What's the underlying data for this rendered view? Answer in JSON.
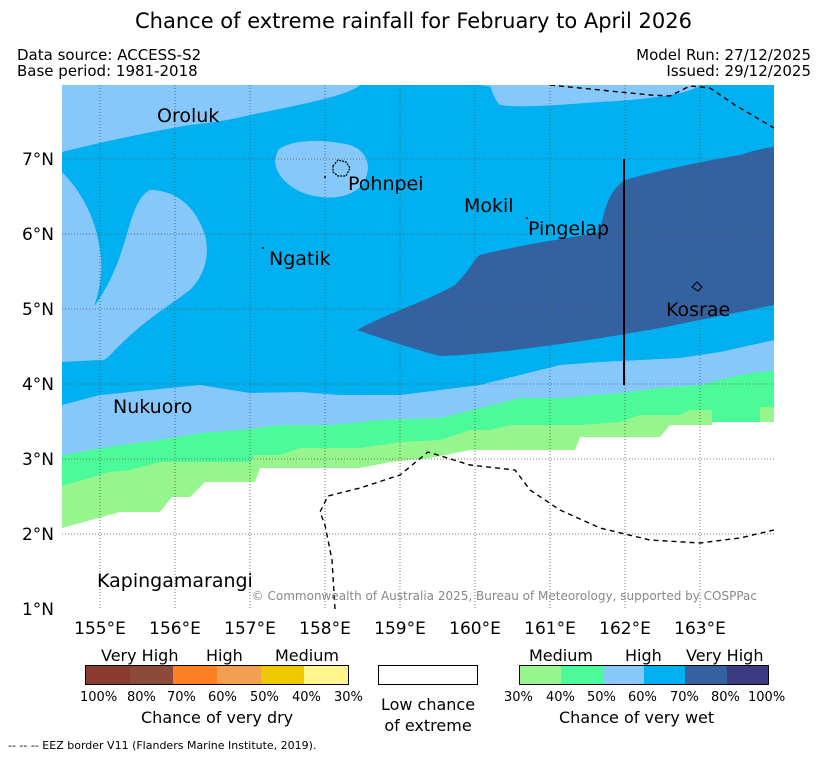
{
  "title": "Chance of extreme rainfall for February to April 2026",
  "meta": {
    "data_source": "Data source: ACCESS-S2",
    "base_period": "Base period: 1981-2018",
    "model_run": "Model Run: 27/12/2025",
    "issued": "Issued: 29/12/2025"
  },
  "axes": {
    "lon_labels": [
      "155°E",
      "156°E",
      "157°E",
      "158°E",
      "159°E",
      "160°E",
      "161°E",
      "162°E",
      "163°E"
    ],
    "lat_labels": [
      "7°N",
      "6°N",
      "5°N",
      "4°N",
      "3°N",
      "2°N",
      "1°N"
    ]
  },
  "places": {
    "oroluk": "Oroluk",
    "pohnpei": "Pohnpei",
    "mokil": "Mokil",
    "pingelap": "Pingelap",
    "ngatik": "Ngatik",
    "kosrae": "Kosrae",
    "nukuoro": "Nukuoro",
    "kapingamarangi": "Kapingamarangi"
  },
  "copyright": "© Commonwealth of Australia 2025, Bureau of Meteorology, supported by COSPPac",
  "legend": {
    "dry": {
      "headers": [
        "Very High",
        "High",
        "Medium"
      ],
      "ticks": [
        "100%",
        "80%",
        "70%",
        "60%",
        "50%",
        "40%",
        "30%"
      ],
      "title": "Chance of very dry",
      "colors": [
        "#8b3a2f",
        "#8b4a3a",
        "#ff7f24",
        "#f0a050",
        "#f0c800",
        "#fff58c"
      ]
    },
    "low": {
      "line1": "Low chance",
      "line2": "of extreme"
    },
    "wet": {
      "headers": [
        "Medium",
        "High",
        "Very High"
      ],
      "ticks": [
        "30%",
        "40%",
        "50%",
        "60%",
        "70%",
        "80%",
        "100%"
      ],
      "title": "Chance of very wet",
      "colors": [
        "#96f58c",
        "#4cfa9a",
        "#87c8fa",
        "#00b0f0",
        "#3462a0",
        "#3c3a80"
      ]
    }
  },
  "eez_note": "--  --  -- EEZ border V11 (Flanders Marine Institute, 2019).",
  "colors": {
    "medium_wet_light": "#96f58c",
    "medium_wet": "#4cfa9a",
    "high_light": "#87c8fa",
    "high": "#00b0f0",
    "very_high": "#3462a0"
  }
}
